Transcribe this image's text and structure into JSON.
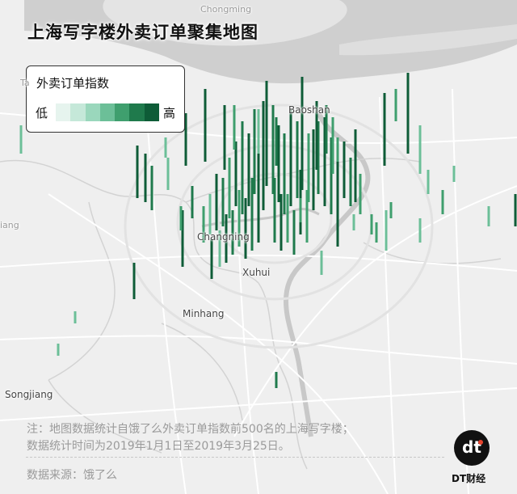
{
  "title": "上海写字楼外卖订单聚集地图",
  "legend": {
    "title": "外卖订单指数",
    "low": "低",
    "high": "高",
    "colors": [
      "#e6f4ee",
      "#c5e8d9",
      "#9ad7bc",
      "#6cbf98",
      "#3f9f6e",
      "#1f7a4c",
      "#0e5c37"
    ]
  },
  "places": {
    "chongming": "Chongming",
    "baoshan": "Baoshan",
    "changning": "Changning",
    "xuhui": "Xuhui",
    "minhang": "Minhang",
    "songjiang": "Songjiang",
    "top_left": "Ta",
    "left_edge": "iang"
  },
  "note_line1": "注：地图数据统计自饿了么外卖订单指数前500名的上海写字楼；",
  "note_line2": "数据统计时间为2019年1月1日至2019年3月25日。",
  "source": "数据来源：饿了么",
  "logo": {
    "mark": "dt",
    "name": "DT财经"
  },
  "colors": {
    "river": "#c8c8c8",
    "land": "#f2f2f2",
    "road": "#ffffff",
    "bar_dark": "#0e5c37",
    "bar_light": "#9ad7bc"
  }
}
